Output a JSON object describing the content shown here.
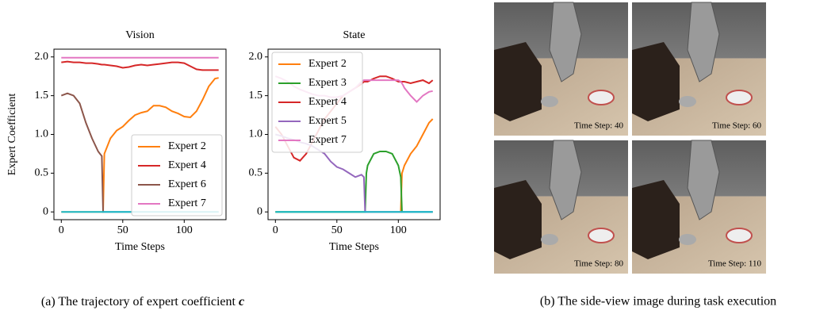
{
  "chart_data": [
    {
      "type": "line",
      "title": "Vision",
      "x_label": "Time Steps",
      "y_label": "Expert Coefficient",
      "x": [
        0,
        5,
        10,
        15,
        20,
        25,
        30,
        33,
        34,
        35,
        40,
        45,
        50,
        55,
        60,
        65,
        70,
        75,
        80,
        85,
        90,
        95,
        100,
        105,
        110,
        115,
        120,
        125,
        128
      ],
      "series": [
        {
          "name": "Expert 2",
          "color": "#ff7f0e",
          "values": [
            0,
            0,
            0,
            0,
            0,
            0,
            0,
            0,
            0,
            0.75,
            0.95,
            1.05,
            1.1,
            1.18,
            1.25,
            1.28,
            1.3,
            1.37,
            1.37,
            1.35,
            1.3,
            1.27,
            1.23,
            1.22,
            1.3,
            1.45,
            1.62,
            1.72,
            1.73
          ]
        },
        {
          "name": "Expert 4",
          "color": "#d62728",
          "values": [
            1.93,
            1.94,
            1.93,
            1.93,
            1.92,
            1.92,
            1.91,
            1.9,
            1.9,
            1.9,
            1.89,
            1.88,
            1.86,
            1.87,
            1.89,
            1.9,
            1.89,
            1.9,
            1.91,
            1.92,
            1.93,
            1.93,
            1.92,
            1.88,
            1.84,
            1.83,
            1.83,
            1.83,
            1.83
          ]
        },
        {
          "name": "Expert 6",
          "color": "#8c564b",
          "values": [
            1.5,
            1.53,
            1.5,
            1.4,
            1.15,
            0.95,
            0.78,
            0.72,
            0,
            0,
            0,
            0,
            0,
            0,
            0,
            0,
            0,
            0,
            0,
            0,
            0,
            0,
            0,
            0,
            0,
            0,
            0,
            0,
            0
          ]
        },
        {
          "name": "Expert 7",
          "color": "#e377c2",
          "values": [
            1.99,
            1.99,
            1.99,
            1.99,
            1.99,
            1.99,
            1.99,
            1.99,
            1.99,
            1.99,
            1.99,
            1.99,
            1.99,
            1.99,
            1.99,
            1.99,
            1.99,
            1.99,
            1.99,
            1.99,
            1.99,
            1.99,
            1.99,
            1.99,
            1.99,
            1.99,
            1.99,
            1.99,
            1.99
          ]
        },
        {
          "color": "#17becf",
          "values": [
            0,
            0,
            0,
            0,
            0,
            0,
            0,
            0,
            0,
            0,
            0,
            0,
            0,
            0,
            0,
            0,
            0,
            0,
            0,
            0,
            0,
            0,
            0,
            0,
            0,
            0,
            0,
            0,
            0
          ]
        }
      ],
      "xlim": [
        -6,
        134
      ],
      "ylim": [
        -0.1,
        2.1
      ],
      "xticks": [
        0,
        50,
        100
      ],
      "yticks": [
        0,
        0.5,
        {
          "value": 1,
          "label": "1.0"
        },
        1.5,
        {
          "value": 2,
          "label": "2.0"
        }
      ],
      "legend": "lower right"
    },
    {
      "type": "line",
      "title": "State",
      "x_label": "Time Steps",
      "x": [
        0,
        5,
        10,
        15,
        20,
        25,
        30,
        35,
        40,
        45,
        50,
        55,
        60,
        65,
        70,
        72,
        73,
        74,
        75,
        80,
        85,
        90,
        95,
        100,
        102,
        103,
        104,
        105,
        110,
        115,
        120,
        125,
        128
      ],
      "series": [
        {
          "name": "Expert 2",
          "color": "#ff7f0e",
          "values": [
            0,
            0,
            0,
            0,
            0,
            0,
            0,
            0,
            0,
            0,
            0,
            0,
            0,
            0,
            0,
            0,
            0,
            0,
            0,
            0,
            0,
            0,
            0,
            0,
            0,
            0.5,
            0.55,
            0.6,
            0.75,
            0.85,
            1.0,
            1.15,
            1.2
          ]
        },
        {
          "name": "Expert 3",
          "color": "#2ca02c",
          "values": [
            0,
            0,
            0,
            0,
            0,
            0,
            0,
            0,
            0,
            0,
            0,
            0,
            0,
            0,
            0,
            0,
            0,
            0.5,
            0.6,
            0.75,
            0.78,
            0.78,
            0.75,
            0.6,
            0.45,
            0,
            0,
            0,
            0,
            0,
            0,
            0,
            0
          ]
        },
        {
          "name": "Expert 4",
          "color": "#d62728",
          "values": [
            1.1,
            1.0,
            0.85,
            0.7,
            0.66,
            0.75,
            0.9,
            1.05,
            1.2,
            1.3,
            1.4,
            1.5,
            1.55,
            1.6,
            1.65,
            1.68,
            1.68,
            1.68,
            1.68,
            1.72,
            1.75,
            1.75,
            1.72,
            1.68,
            1.68,
            1.68,
            1.68,
            1.68,
            1.66,
            1.68,
            1.7,
            1.66,
            1.7
          ]
        },
        {
          "name": "Expert 5",
          "color": "#9467bd",
          "values": [
            1.0,
            0.98,
            0.95,
            0.93,
            0.9,
            0.88,
            0.85,
            0.8,
            0.75,
            0.65,
            0.58,
            0.55,
            0.5,
            0.45,
            0.48,
            0.45,
            0,
            0,
            0,
            0,
            0,
            0,
            0,
            0,
            0,
            0,
            0,
            0,
            0,
            0,
            0,
            0,
            0
          ]
        },
        {
          "name": "Expert 7",
          "color": "#e377c2",
          "values": [
            1.75,
            1.72,
            1.68,
            1.62,
            1.58,
            1.55,
            1.52,
            1.5,
            1.5,
            1.48,
            1.48,
            1.5,
            1.55,
            1.6,
            1.68,
            1.7,
            1.7,
            1.7,
            1.7,
            1.7,
            1.7,
            1.7,
            1.7,
            1.7,
            1.68,
            1.66,
            1.63,
            1.6,
            1.5,
            1.42,
            1.5,
            1.55,
            1.56
          ]
        },
        {
          "color": "#17becf",
          "values": [
            0,
            0,
            0,
            0,
            0,
            0,
            0,
            0,
            0,
            0,
            0,
            0,
            0,
            0,
            0,
            0,
            0,
            0,
            0,
            0,
            0,
            0,
            0,
            0,
            0,
            0,
            0,
            0,
            0,
            0,
            0,
            0,
            0
          ]
        }
      ],
      "xlim": [
        -6,
        134
      ],
      "ylim": [
        -0.1,
        2.1
      ],
      "xticks": [
        0,
        50,
        100
      ],
      "yticks": [
        0,
        0.5,
        {
          "value": 1,
          "label": "1.0"
        },
        1.5,
        {
          "value": 2,
          "label": "2.0"
        }
      ],
      "legend": "upper left"
    }
  ],
  "caption_a": "(a) The trajectory of expert coefficient",
  "caption_a_symbol": "c",
  "caption_b": "(b) The side-view image during task execution",
  "frames": [
    "Time Step: 40",
    "Time Step: 60",
    "Time Step: 80",
    "Time Step: 110"
  ]
}
